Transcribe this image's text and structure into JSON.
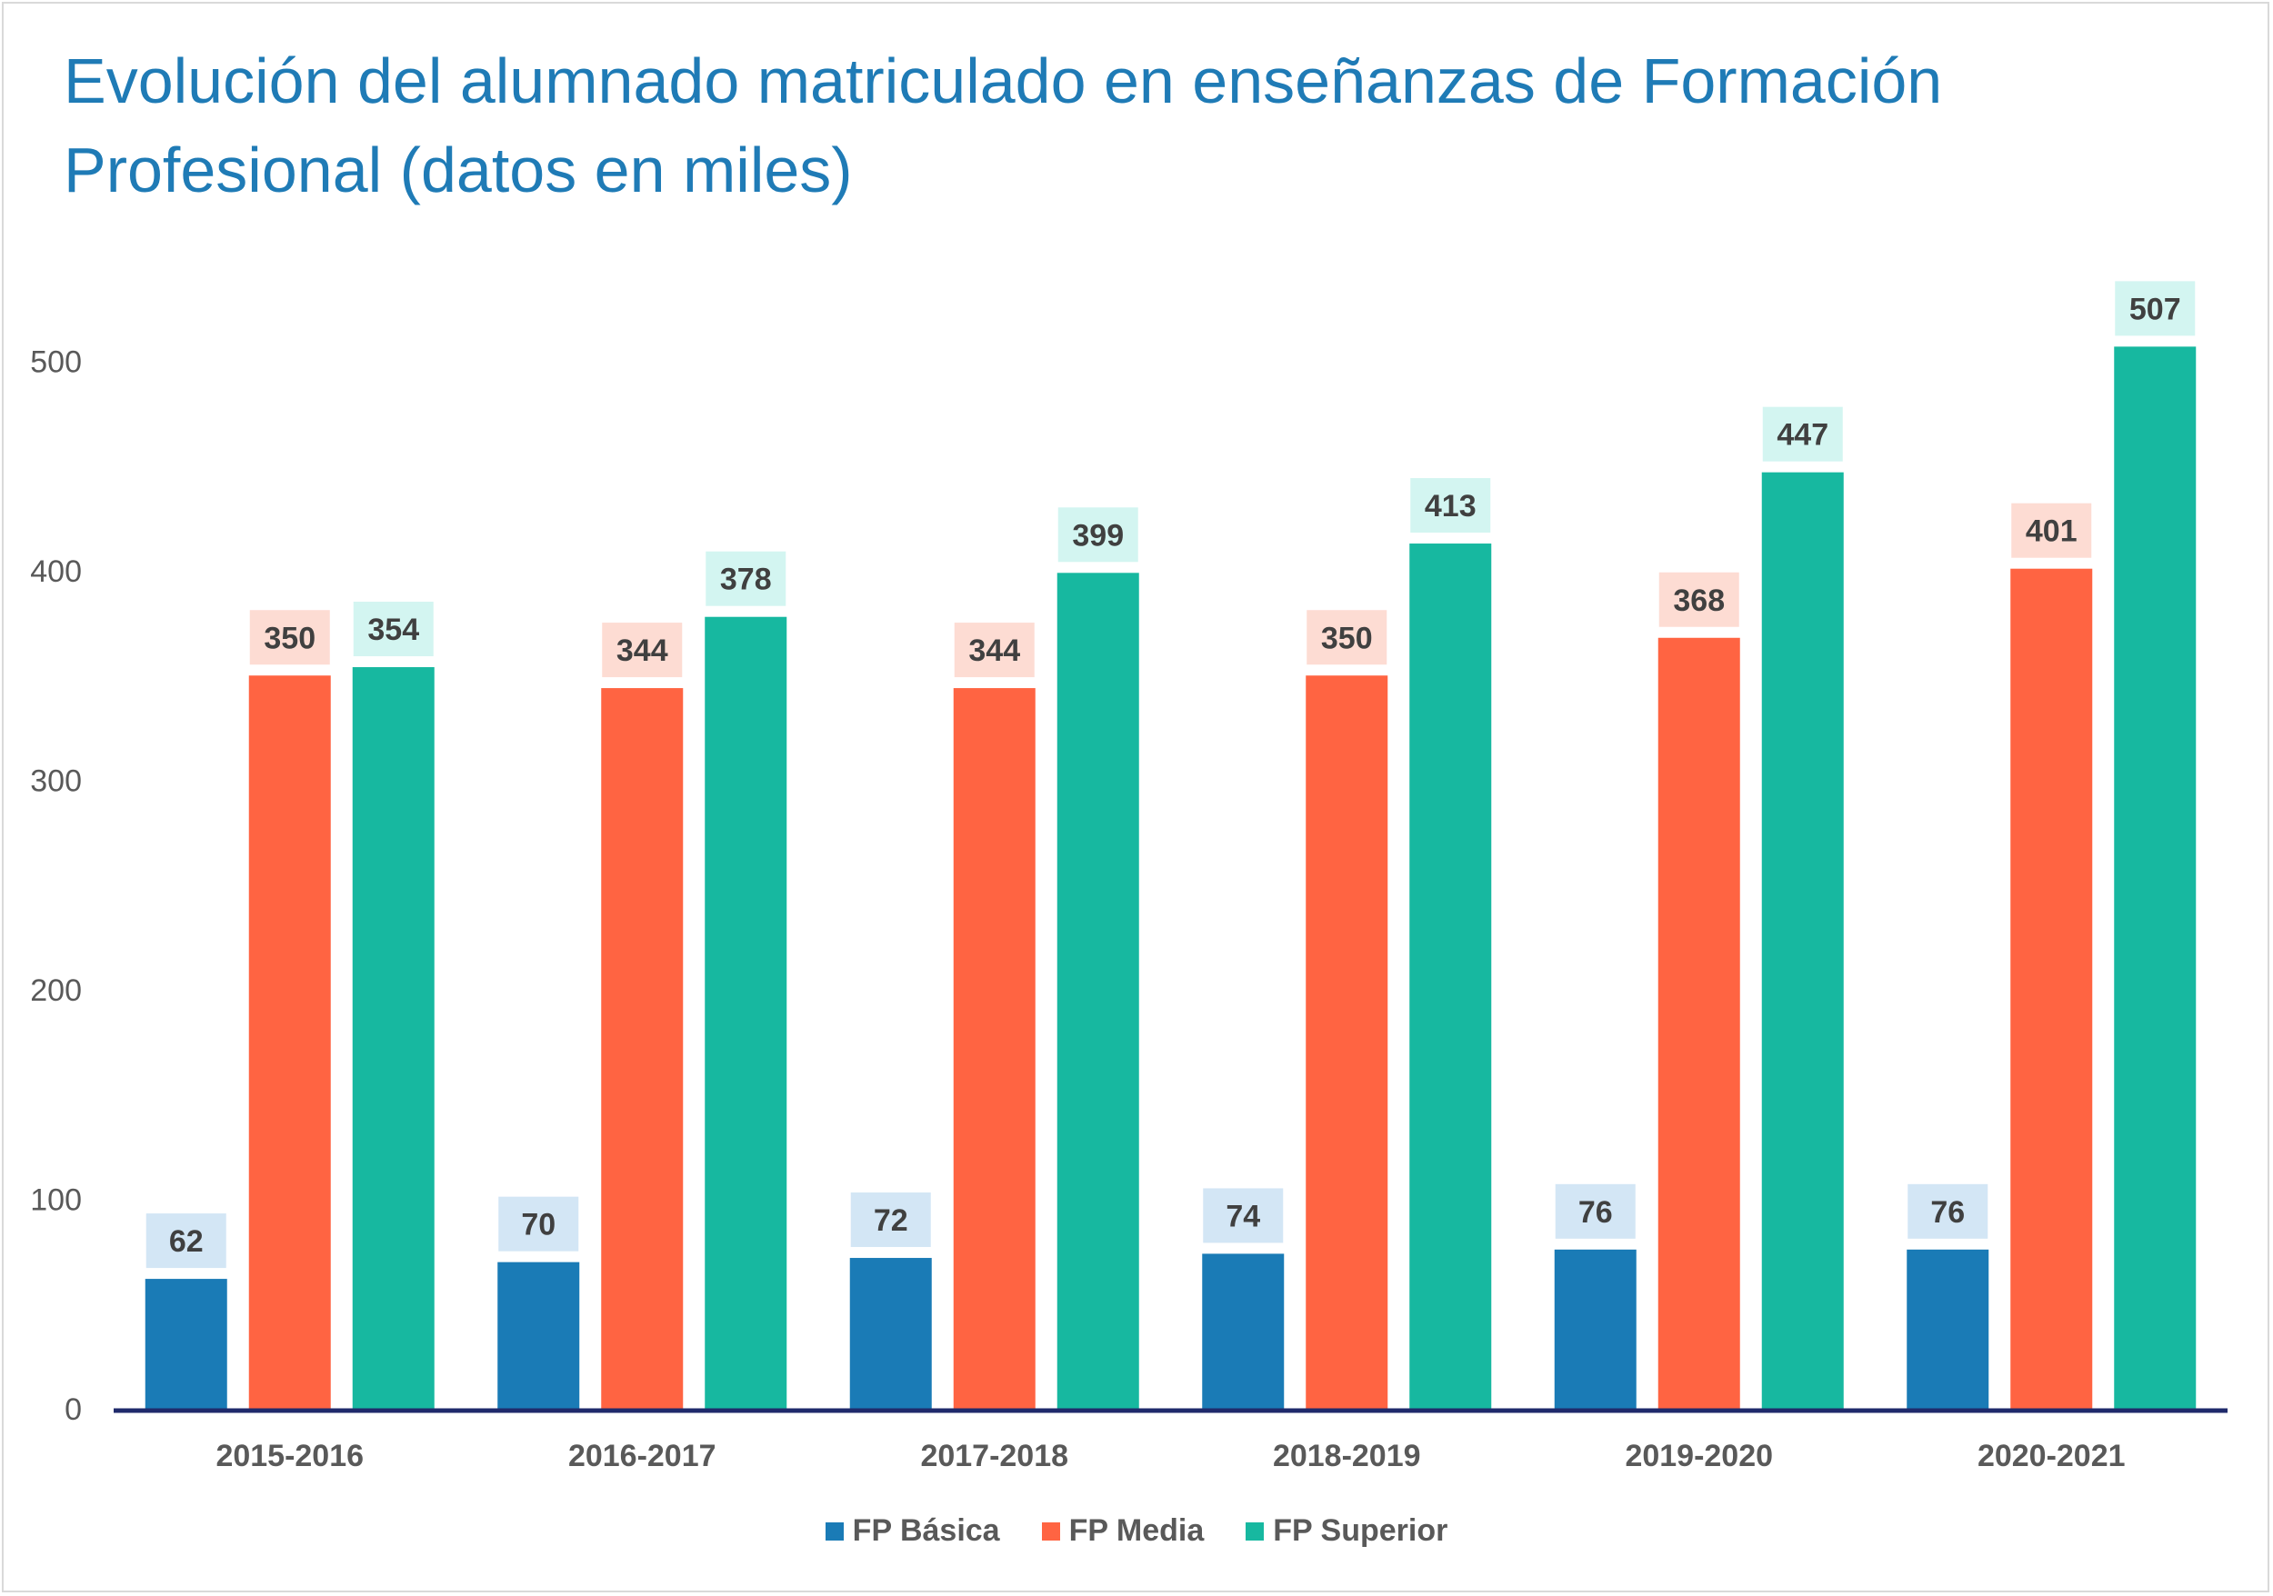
{
  "title": "Evolución del alumnado matriculado en enseñanzas de Formación Profesional (datos en miles)",
  "chart_data": {
    "type": "bar",
    "title": "Evolución del alumnado matriculado en enseñanzas de Formación Profesional (datos en miles)",
    "xlabel": "",
    "ylabel": "",
    "categories": [
      "2015-2016",
      "2016-2017",
      "2017-2018",
      "2018-2019",
      "2019-2020",
      "2020-2021"
    ],
    "series": [
      {
        "name": "FP Básica",
        "color": "#1a7bb6",
        "label_bg": "#d3e6f5",
        "values": [
          62,
          70,
          72,
          74,
          76,
          76
        ]
      },
      {
        "name": "FP Media",
        "color": "#ff6442",
        "label_bg": "#fddcd3",
        "values": [
          350,
          344,
          344,
          350,
          368,
          401
        ]
      },
      {
        "name": "FP Superior",
        "color": "#17b8a0",
        "label_bg": "#d3f5f1",
        "values": [
          354,
          378,
          399,
          413,
          447,
          507
        ]
      }
    ],
    "yticks": [
      0,
      100,
      200,
      300,
      400,
      500
    ],
    "ylim": [
      0,
      540
    ],
    "grid": false,
    "legend": "bottom-center"
  }
}
